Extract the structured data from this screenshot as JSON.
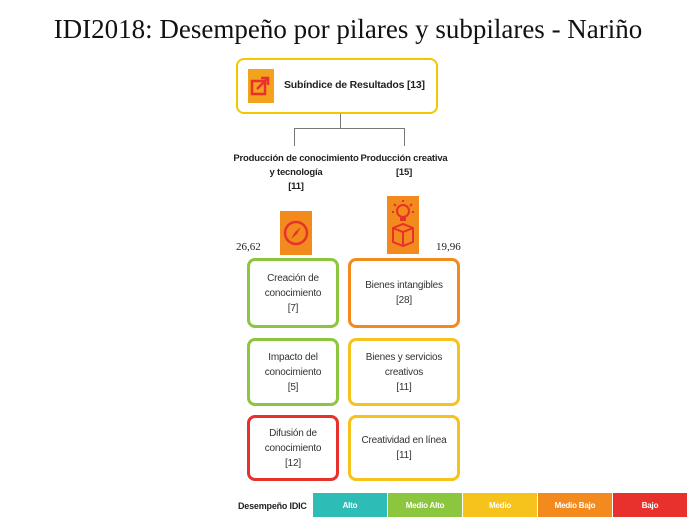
{
  "title": "IDI2018: Desempeño por pilares y subpilares - Nariño",
  "root": {
    "label": "Subíndice de Resultados [13]",
    "border_color": "#f2c600",
    "icon": "arrow-box-icon",
    "icon_color": "#f3a21d"
  },
  "pillars": [
    {
      "name_line1": "Producción de conocimiento",
      "name_line2": "y tecnología",
      "rank": "[11]",
      "value": "26,62",
      "icon": "compass-icon",
      "icon_color": "#f28a1e",
      "subpillars": [
        {
          "line1": "Creación de",
          "line2": "conocimiento",
          "rank": "[7]",
          "color": "#8cc63f"
        },
        {
          "line1": "Impacto del",
          "line2": "conocimiento",
          "rank": "[5]",
          "color": "#8cc63f"
        },
        {
          "line1": "Difusión de",
          "line2": "conocimiento",
          "rank": "[12]",
          "color": "#e8312d"
        }
      ]
    },
    {
      "name_line1": "Producción creativa",
      "rank": "[15]",
      "value": "19,96",
      "icon": "lightbulb-box-icon",
      "icon_color": "#f28a1e",
      "subpillars": [
        {
          "line1": "Bienes intangibles",
          "rank": "[28]",
          "color": "#f28a1e"
        },
        {
          "line1": "Bienes y servicios",
          "line2": "creativos",
          "rank": "[11]",
          "color": "#f6c21c"
        },
        {
          "line1": "Creatividad en línea",
          "rank": "[11]",
          "color": "#f6c21c"
        }
      ]
    }
  ],
  "legend": {
    "label": "Desempeño IDIC",
    "items": [
      {
        "label": "Alto",
        "color": "#2dbdb6"
      },
      {
        "label": "Medio Alto",
        "color": "#8cc63f"
      },
      {
        "label": "Medio",
        "color": "#f6c21c"
      },
      {
        "label": "Medio Bajo",
        "color": "#f28a1e"
      },
      {
        "label": "Bajo",
        "color": "#e8312d"
      }
    ]
  }
}
